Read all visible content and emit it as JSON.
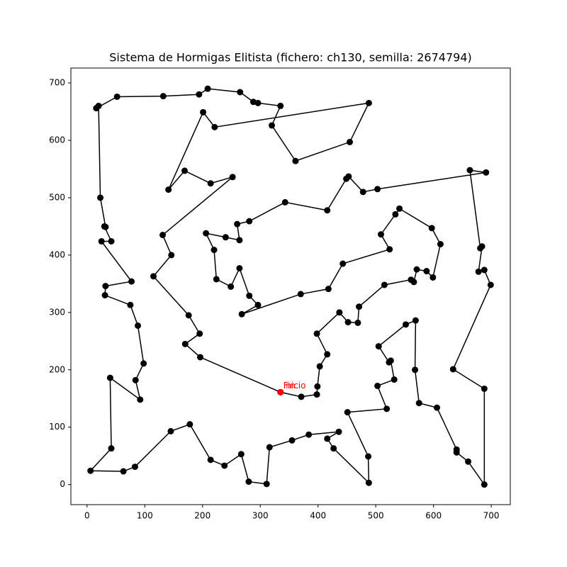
{
  "chart_data": {
    "type": "line",
    "title": "Sistema de Hormigas Elitista (fichero: ch130, semilla: 2674794)",
    "x": [
      335,
      371,
      398,
      399,
      403,
      416,
      398,
      437,
      452,
      469,
      471,
      515,
      561,
      566,
      571,
      588,
      599,
      612,
      597,
      541,
      534,
      509,
      524,
      443,
      418,
      370,
      268,
      296,
      281,
      264,
      249,
      224,
      220,
      206,
      240,
      264,
      260,
      281,
      343,
      416,
      449,
      453,
      478,
      503,
      691,
      663,
      681,
      684,
      678,
      688,
      699,
      634,
      688,
      688,
      660,
      640,
      640,
      606,
      575,
      568,
      569,
      552,
      505,
      523,
      526,
      532,
      503,
      519,
      451,
      487,
      488,
      427,
      416,
      436,
      384,
      355,
      316,
      311,
      280,
      267,
      238,
      214,
      178,
      145,
      83,
      63,
      6,
      42,
      40,
      92,
      84,
      98,
      88,
      75,
      31,
      32,
      77,
      25,
      42,
      30,
      32,
      23,
      20,
      16,
      52,
      132,
      194,
      209,
      265,
      288,
      296,
      335,
      320,
      361,
      455,
      488,
      221,
      201,
      141,
      169,
      214,
      252,
      131,
      146,
      115,
      176,
      195,
      170,
      196,
      335
    ],
    "y": [
      161,
      153,
      157,
      171,
      206,
      227,
      263,
      300,
      283,
      282,
      310,
      348,
      357,
      353,
      375,
      372,
      361,
      419,
      447,
      481,
      471,
      436,
      410,
      385,
      341,
      332,
      297,
      313,
      329,
      377,
      345,
      358,
      409,
      438,
      431,
      426,
      454,
      459,
      492,
      478,
      533,
      537,
      510,
      515,
      544,
      548,
      412,
      415,
      371,
      374,
      348,
      201,
      167,
      0,
      40,
      56,
      61,
      134,
      142,
      200,
      286,
      279,
      241,
      213,
      216,
      183,
      172,
      132,
      126,
      49,
      3,
      63,
      80,
      92,
      87,
      77,
      65,
      1,
      5,
      53,
      33,
      43,
      105,
      93,
      31,
      23,
      24,
      63,
      186,
      148,
      182,
      211,
      277,
      313,
      330,
      346,
      354,
      424,
      424,
      450,
      449,
      500,
      660,
      656,
      676,
      677,
      680,
      690,
      684,
      667,
      665,
      660,
      626,
      564,
      597,
      665,
      623,
      649,
      514,
      547,
      525,
      536,
      435,
      400,
      363,
      295,
      263,
      245,
      222,
      161
    ],
    "color": "#000000",
    "start_color": "#ff0000",
    "start_label": "Inicio",
    "end_label": "Fin",
    "xlim": [
      -28,
      733
    ],
    "ylim": [
      -35,
      726
    ],
    "xticks": [
      0,
      100,
      200,
      300,
      400,
      500,
      600,
      700
    ],
    "yticks": [
      0,
      100,
      200,
      300,
      400,
      500,
      600,
      700
    ],
    "grid": false
  }
}
